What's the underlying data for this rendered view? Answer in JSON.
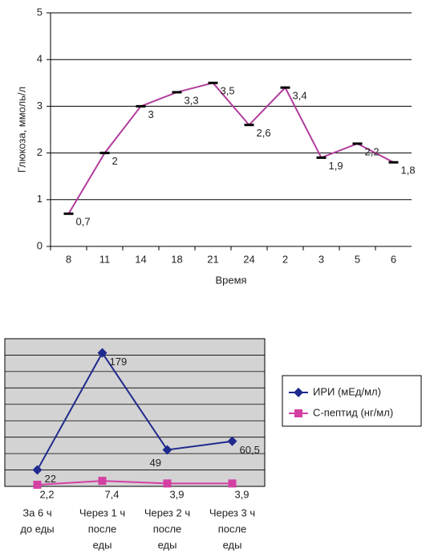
{
  "chart_data": [
    {
      "type": "line",
      "x_label": "Время",
      "y_label": "Глюкоза, ммоль/л",
      "categories": [
        "8",
        "11",
        "14",
        "18",
        "21",
        "24",
        "2",
        "3",
        "5",
        "6"
      ],
      "series": [
        {
          "color": "#b23c9c",
          "values": [
            0.7,
            2,
            3,
            3.3,
            3.5,
            2.6,
            3.4,
            1.9,
            2.2,
            1.8
          ],
          "value_labels": [
            "0,7",
            "2",
            "3",
            "3,3",
            "3,5",
            "2,6",
            "3,4",
            "1,9",
            "2,2",
            "1,8"
          ]
        }
      ],
      "ylim": [
        0,
        5
      ],
      "yticks": [
        0,
        1,
        2,
        3,
        4,
        5
      ],
      "grid": true
    },
    {
      "type": "line",
      "categories": [
        [
          "За 6 ч",
          "до еды"
        ],
        [
          "Через 1 ч",
          "после",
          "еды"
        ],
        [
          "Через 2 ч",
          "после",
          "еды"
        ],
        [
          "Через 3 ч",
          "после",
          "еды"
        ]
      ],
      "series": [
        {
          "name": "ИРИ (мЕд/мл)",
          "color": "#1e2a8c",
          "marker": "diamond",
          "values": [
            22,
            179,
            49,
            60.5
          ],
          "value_labels": [
            "22",
            "179",
            "49",
            "60,5"
          ]
        },
        {
          "name": "С-пептид (нг/мл)",
          "color": "#d43fa4",
          "marker": "square",
          "values": [
            2.2,
            7.4,
            3.9,
            3.9
          ],
          "value_labels": [
            "2,2",
            "7,4",
            "3,9",
            "3,9"
          ]
        }
      ],
      "ylim": [
        0,
        198
      ],
      "yticks": [
        0,
        22,
        44,
        66,
        88,
        110,
        132,
        154,
        176,
        198
      ],
      "ytick_labels": false,
      "grid": true,
      "legend": "right"
    }
  ]
}
